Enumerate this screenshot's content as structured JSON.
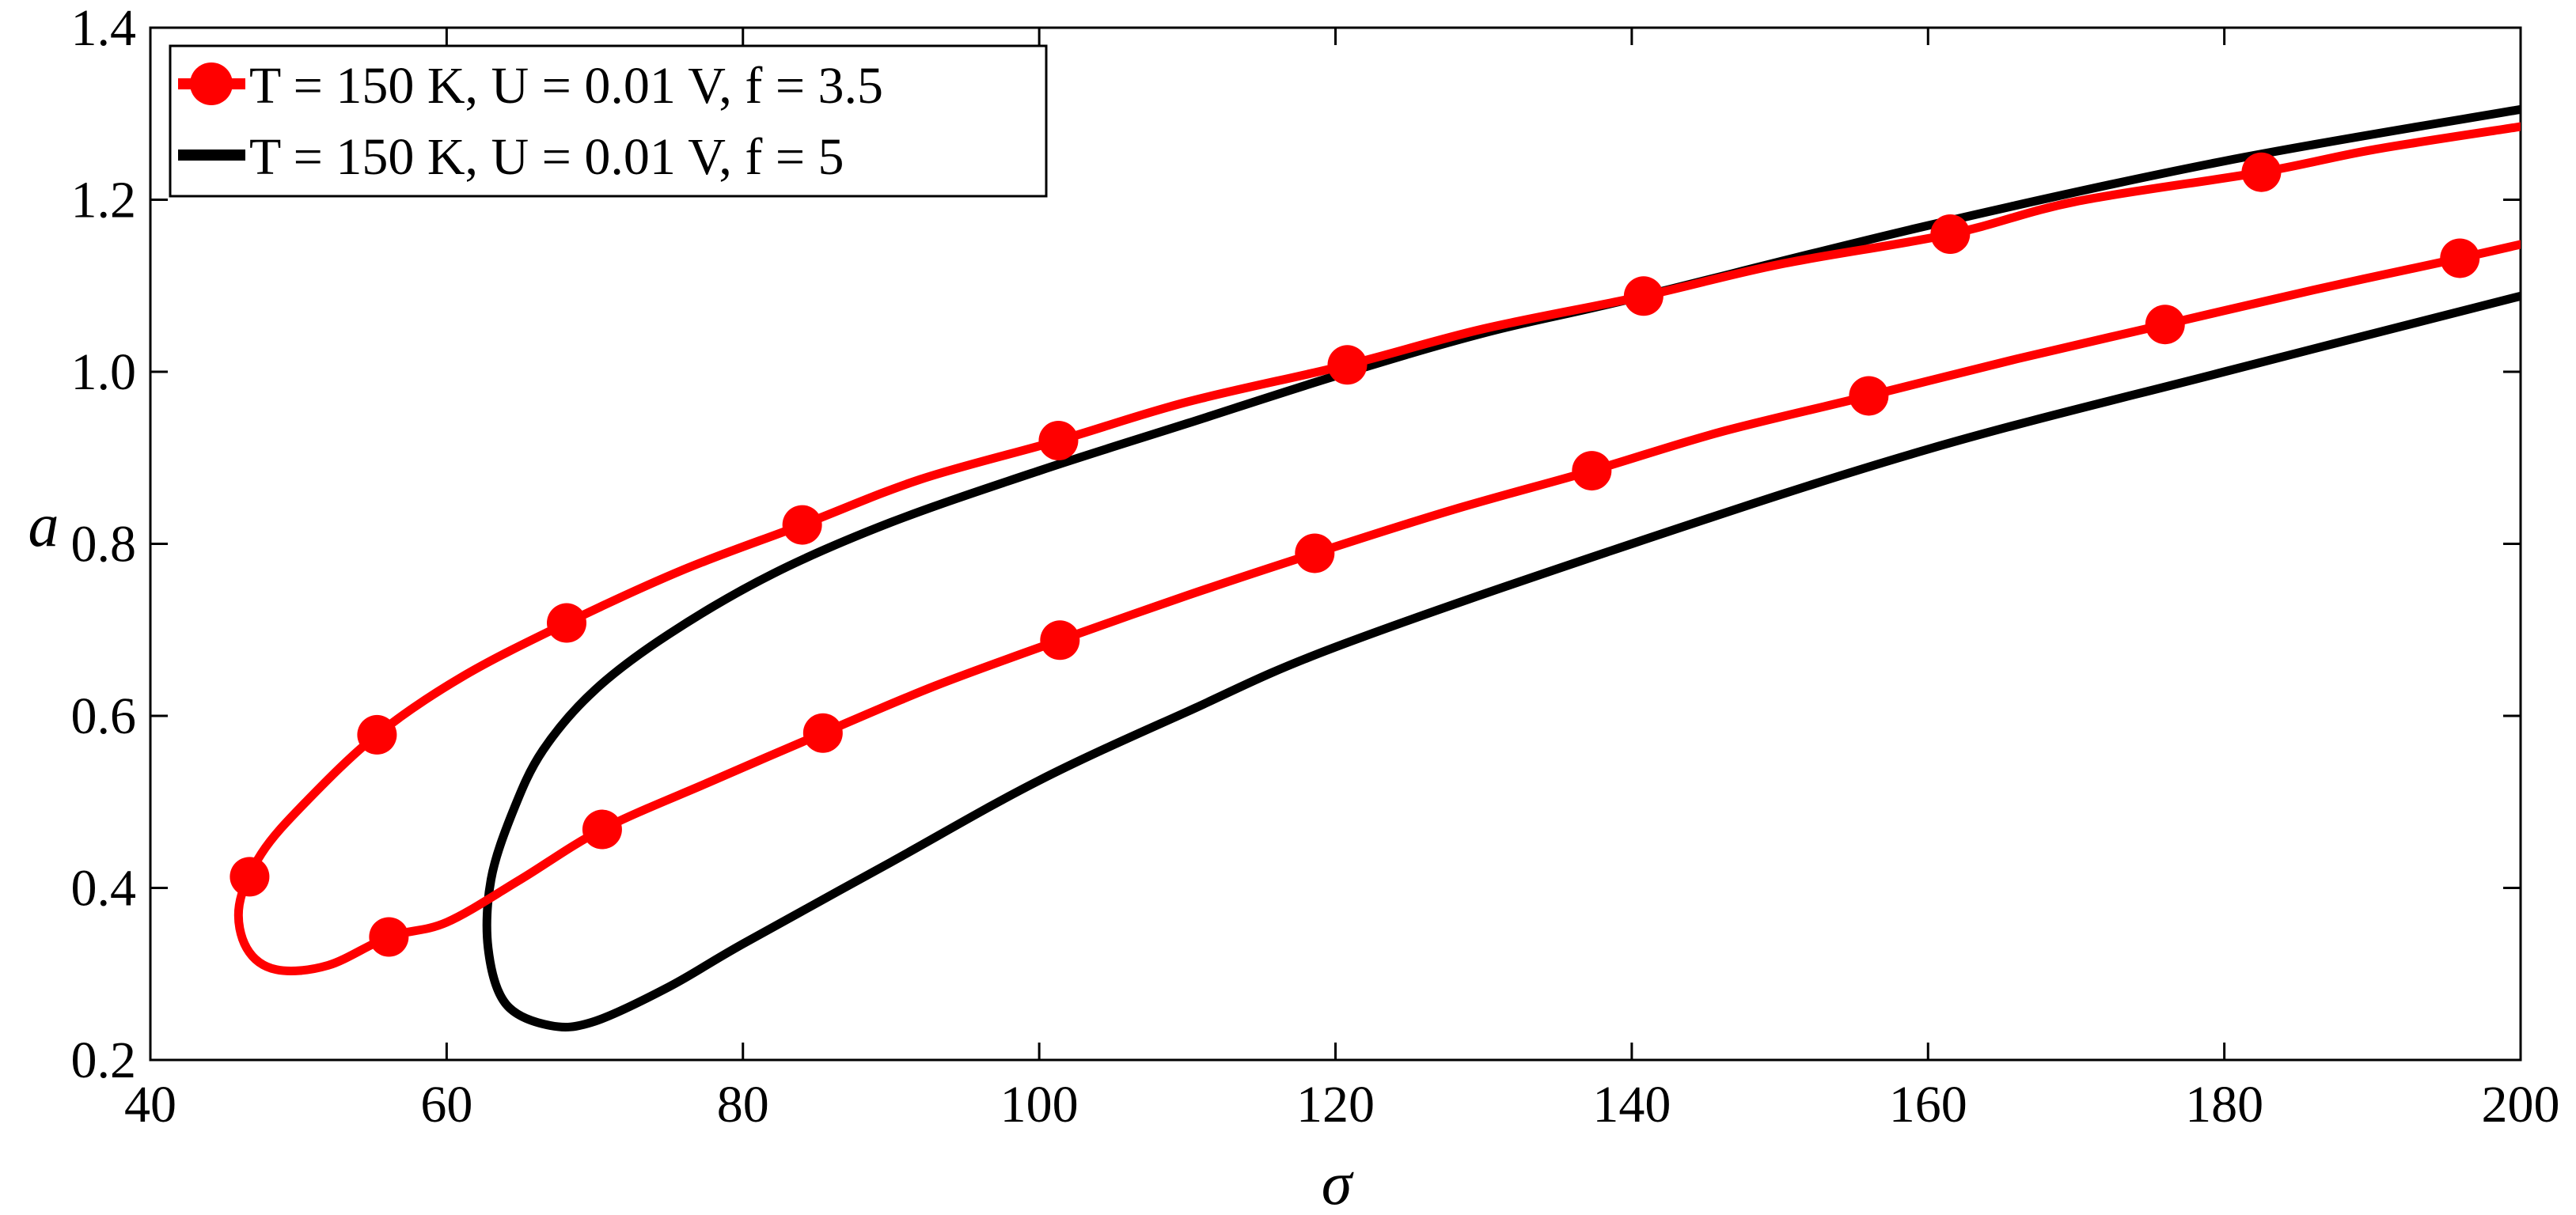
{
  "chart_data": {
    "type": "line",
    "title": "",
    "xlabel": "σ",
    "ylabel": "a",
    "xlim": [
      40,
      200
    ],
    "ylim": [
      0.2,
      1.4
    ],
    "xticks": [
      40,
      60,
      80,
      100,
      120,
      140,
      160,
      180,
      200
    ],
    "yticks": [
      0.2,
      0.4,
      0.6,
      0.8,
      1.0,
      1.2,
      1.4
    ],
    "xtick_labels": [
      "40",
      "60",
      "80",
      "100",
      "120",
      "140",
      "160",
      "180",
      "200"
    ],
    "ytick_labels": [
      "0.2",
      "0.4",
      "0.6",
      "0.8",
      "1.0",
      "1.2",
      "1.4"
    ],
    "grid": false,
    "legend_position": "top-left",
    "series": [
      {
        "name": "T = 150 K, U = 0.01 V, f = 3.5",
        "color": "#ff0000",
        "marker": "circle",
        "curve": [
          [
            200,
            1.285
          ],
          [
            190,
            1.258
          ],
          [
            182.5,
            1.232
          ],
          [
            170,
            1.198
          ],
          [
            161.5,
            1.16
          ],
          [
            150,
            1.125
          ],
          [
            140.8,
            1.088
          ],
          [
            130,
            1.05
          ],
          [
            120.8,
            1.008
          ],
          [
            110,
            0.965
          ],
          [
            101.3,
            0.92
          ],
          [
            92,
            0.875
          ],
          [
            84,
            0.822
          ],
          [
            76,
            0.77
          ],
          [
            68.1,
            0.708
          ],
          [
            61,
            0.645
          ],
          [
            55.3,
            0.578
          ],
          [
            50.5,
            0.5
          ],
          [
            47.5,
            0.44
          ],
          [
            46,
            0.38
          ],
          [
            46.5,
            0.33
          ],
          [
            48.5,
            0.305
          ],
          [
            52,
            0.31
          ],
          [
            56.1,
            0.343
          ],
          [
            60,
            0.36
          ],
          [
            65,
            0.41
          ],
          [
            70.5,
            0.468
          ],
          [
            78,
            0.525
          ],
          [
            85.4,
            0.58
          ],
          [
            93,
            0.635
          ],
          [
            101.4,
            0.688
          ],
          [
            110,
            0.74
          ],
          [
            118.6,
            0.789
          ],
          [
            128,
            0.84
          ],
          [
            137.3,
            0.885
          ],
          [
            146,
            0.93
          ],
          [
            156,
            0.972
          ],
          [
            166,
            1.015
          ],
          [
            176,
            1.055
          ],
          [
            186,
            1.095
          ],
          [
            195.9,
            1.132
          ],
          [
            200,
            1.148
          ]
        ],
        "markers": [
          [
            182.5,
            1.232
          ],
          [
            161.5,
            1.16
          ],
          [
            140.8,
            1.088
          ],
          [
            120.8,
            1.008
          ],
          [
            101.3,
            0.92
          ],
          [
            84,
            0.822
          ],
          [
            68.1,
            0.708
          ],
          [
            55.3,
            0.578
          ],
          [
            46.7,
            0.413
          ],
          [
            56.1,
            0.343
          ],
          [
            70.5,
            0.468
          ],
          [
            85.4,
            0.58
          ],
          [
            101.4,
            0.688
          ],
          [
            118.6,
            0.789
          ],
          [
            137.3,
            0.885
          ],
          [
            156,
            0.972
          ],
          [
            176,
            1.055
          ],
          [
            195.9,
            1.132
          ]
        ]
      },
      {
        "name": "T = 150 K, U = 0.01 V, f = 5",
        "color": "#000000",
        "marker": "none",
        "curve": [
          [
            200,
            1.305
          ],
          [
            180,
            1.245
          ],
          [
            160,
            1.17
          ],
          [
            140,
            1.085
          ],
          [
            130,
            1.045
          ],
          [
            120,
            0.995
          ],
          [
            110,
            0.94
          ],
          [
            100,
            0.885
          ],
          [
            90,
            0.825
          ],
          [
            82,
            0.765
          ],
          [
            75,
            0.695
          ],
          [
            70,
            0.63
          ],
          [
            66.5,
            0.56
          ],
          [
            64.5,
            0.49
          ],
          [
            63,
            0.41
          ],
          [
            62.8,
            0.33
          ],
          [
            64,
            0.265
          ],
          [
            67,
            0.24
          ],
          [
            70,
            0.245
          ],
          [
            75,
            0.285
          ],
          [
            80,
            0.335
          ],
          [
            90,
            0.43
          ],
          [
            100,
            0.525
          ],
          [
            110,
            0.605
          ],
          [
            120,
            0.68
          ],
          [
            140,
            0.8
          ],
          [
            160,
            0.91
          ],
          [
            180,
            1.0
          ],
          [
            200,
            1.088
          ]
        ]
      }
    ]
  }
}
